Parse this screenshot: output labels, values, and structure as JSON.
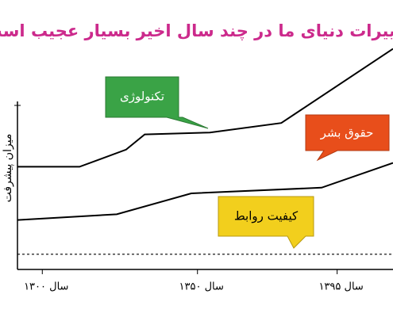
{
  "chart_data": {
    "type": "line",
    "title": "تغییرات دنیای ما در چند سال اخیر بسیار عجیب است",
    "y_label": "میزان پیشرفت",
    "xlim": [
      1292,
      1413
    ],
    "ylim": [
      0,
      140
    ],
    "xticks": [
      {
        "value": 1300,
        "label": "سال ۱۳۰۰"
      },
      {
        "value": 1350,
        "label": "سال ۱۳۵۰"
      },
      {
        "value": 1395,
        "label": "سال ۱۳۹۵"
      }
    ],
    "series": [
      {
        "name": "تکنولوژی",
        "color": "#000000",
        "x": [
          1292,
          1312,
          1327,
          1333,
          1354,
          1377,
          1413
        ],
        "values": [
          54,
          54,
          63,
          71,
          72,
          77,
          116
        ]
      },
      {
        "name": "حقوق بشر",
        "color": "#000000",
        "x": [
          1292,
          1324,
          1348,
          1390,
          1413
        ],
        "values": [
          26,
          29,
          40,
          43,
          56
        ]
      },
      {
        "name": "کیفیت روابط",
        "color": "#000000",
        "dashed": true,
        "x": [
          1292,
          1413
        ],
        "values": [
          8,
          8
        ]
      }
    ]
  }
}
